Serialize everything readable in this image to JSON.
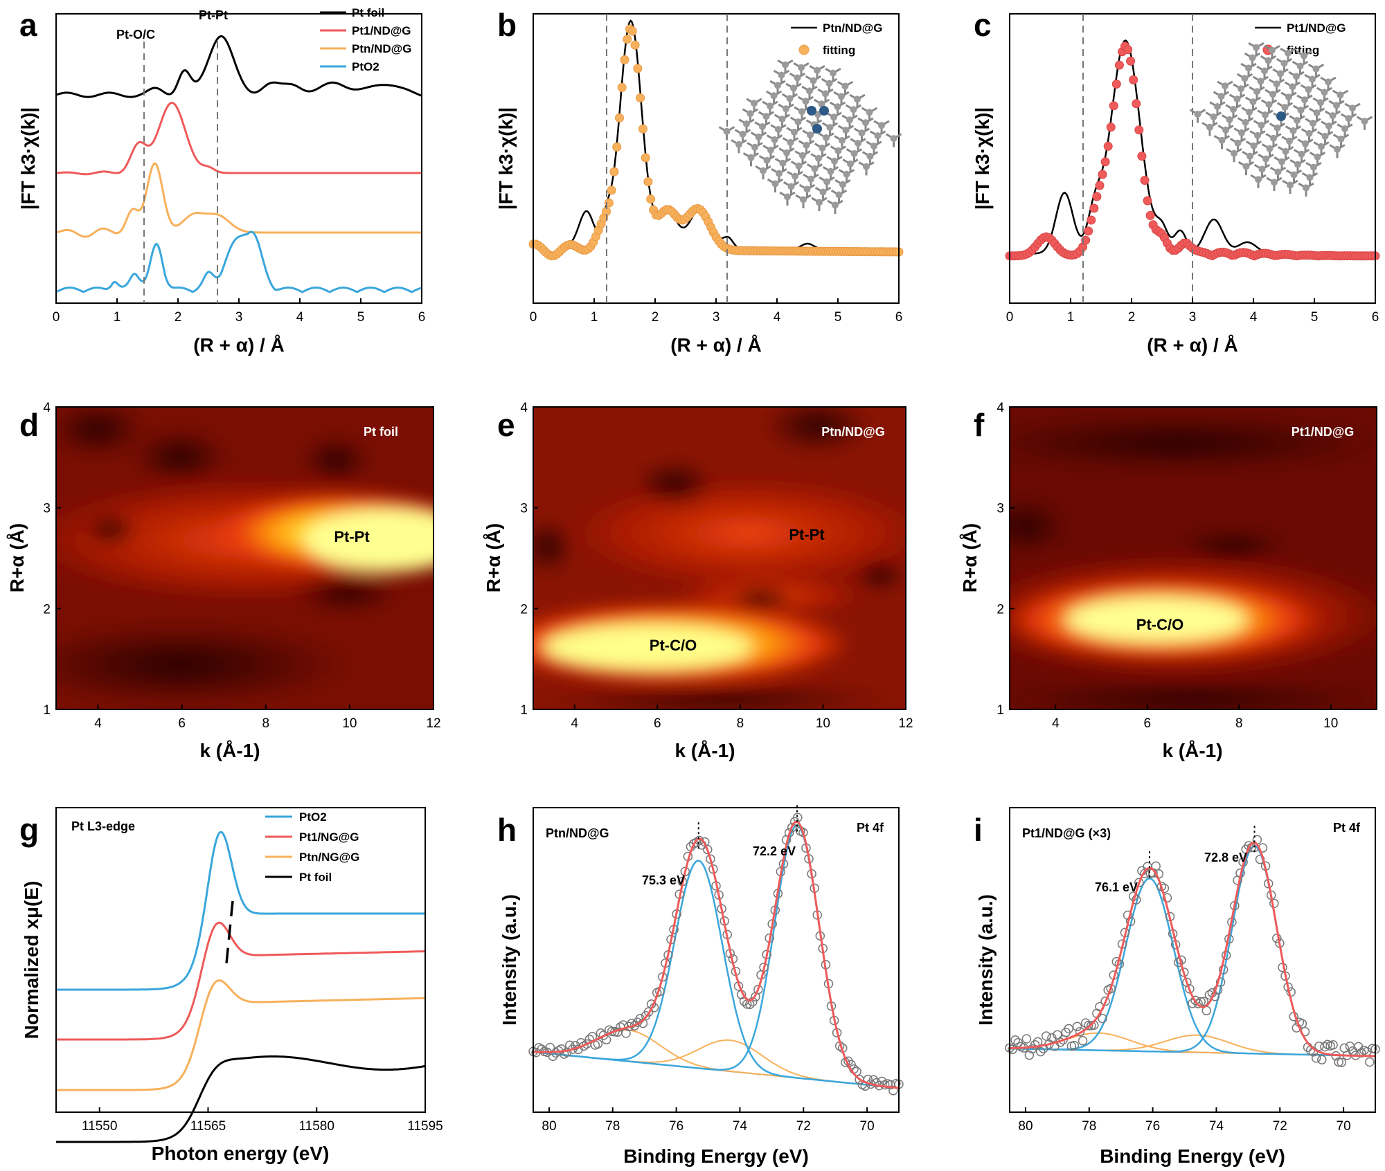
{
  "colors": {
    "black": "#000000",
    "red": "#ef5a5a",
    "orange": "#f7b05b",
    "blue": "#3aa6dc",
    "gray_marker": "#777777",
    "baseline": "#8a8a8a"
  },
  "chart_data": [
    {
      "panel": "a",
      "type": "line",
      "xlabel": "(R + α) / Å",
      "ylabel": "|FT k3·χ(k)|",
      "xlim": [
        0,
        6
      ],
      "xticks": [
        "0",
        "1",
        "2",
        "3",
        "4",
        "5",
        "6"
      ],
      "dashed_lines": [
        1.63,
        2.65
      ],
      "annotations": [
        {
          "text": "Pt-O/C",
          "x": 1.63
        },
        {
          "text": "Pt-Pt",
          "x": 2.65
        }
      ],
      "series": [
        {
          "name": "Pt foil",
          "color": "black"
        },
        {
          "name": "Pt1/ND@G",
          "color": "red"
        },
        {
          "name": "Ptn/ND@G",
          "color": "orange"
        },
        {
          "name": "PtO2",
          "color": "blue"
        }
      ]
    },
    {
      "panel": "b",
      "type": "line",
      "xlabel": "(R + α) / Å",
      "ylabel": "|FT k3·χ(k)|",
      "xlim": [
        0,
        6
      ],
      "xticks": [
        "0",
        "1",
        "2",
        "3",
        "4",
        "5",
        "6"
      ],
      "dashed_lines": [
        1.22,
        3.18
      ],
      "series": [
        {
          "name": "Ptn/ND@G",
          "color": "black"
        },
        {
          "name": "fitting",
          "color": "orange"
        }
      ]
    },
    {
      "panel": "c",
      "type": "line",
      "xlabel": "(R + α) / Å",
      "ylabel": "|FT k3·χ(k)|",
      "xlim": [
        0,
        6
      ],
      "xticks": [
        "0",
        "1",
        "2",
        "3",
        "4",
        "5",
        "6"
      ],
      "dashed_lines": [
        1.22,
        3.0
      ],
      "series": [
        {
          "name": "Pt1/ND@G",
          "color": "black"
        },
        {
          "name": "fitting",
          "color": "red"
        }
      ]
    },
    {
      "panel": "d",
      "type": "heatmap",
      "xlabel": "k (Å-1)",
      "ylabel": "R+α (Å)",
      "xlim": [
        3,
        12
      ],
      "ylim": [
        1,
        4
      ],
      "xticks": [
        "4",
        "6",
        "8",
        "10",
        "12"
      ],
      "yticks": [
        "1",
        "2",
        "3",
        "4"
      ],
      "tag": "Pt foil",
      "hotspot_label": "Pt-Pt"
    },
    {
      "panel": "e",
      "type": "heatmap",
      "xlabel": "k (Å-1)",
      "ylabel": "R+α (Å)",
      "xlim": [
        3,
        12
      ],
      "ylim": [
        1,
        4
      ],
      "xticks": [
        "4",
        "6",
        "8",
        "10",
        "12"
      ],
      "yticks": [
        "1",
        "2",
        "3",
        "4"
      ],
      "tag": "Ptn/ND@G",
      "hotspot_labels": [
        "Pt-Pt",
        "Pt-C/O"
      ]
    },
    {
      "panel": "f",
      "type": "heatmap",
      "xlabel": "k (Å-1)",
      "ylabel": "R+α (Å)",
      "xlim": [
        3,
        11
      ],
      "ylim": [
        1,
        4
      ],
      "xticks": [
        "4",
        "6",
        "8",
        "10"
      ],
      "yticks": [
        "1",
        "2",
        "3",
        "4"
      ],
      "tag": "Pt1/ND@G",
      "hotspot_label": "Pt-C/O"
    },
    {
      "panel": "g",
      "type": "line",
      "title": "Pt L3-edge",
      "xlabel": "Photon energy (eV)",
      "ylabel": "Normalized xμ(E)",
      "xlim": [
        11544,
        11595
      ],
      "xticks": [
        "11550",
        "11565",
        "11580",
        "11595"
      ],
      "series": [
        {
          "name": "PtO2",
          "color": "blue"
        },
        {
          "name": "Pt1/NG@G",
          "color": "red"
        },
        {
          "name": "Ptn/NG@G",
          "color": "orange"
        },
        {
          "name": "Pt foil",
          "color": "black"
        }
      ]
    },
    {
      "panel": "h",
      "type": "scatter",
      "sample": "Ptn/ND@G",
      "region": "Pt 4f",
      "xlabel": "Binding Energy (eV)",
      "ylabel": "Intensity (a.u.)",
      "xlim": [
        80.5,
        69
      ],
      "xticks": [
        "80",
        "78",
        "76",
        "74",
        "72",
        "70"
      ],
      "peaks": [
        {
          "label": "75.3 eV",
          "x": 75.3
        },
        {
          "label": "72.2 eV",
          "x": 72.2
        }
      ]
    },
    {
      "panel": "i",
      "type": "scatter",
      "sample": "Pt1/ND@G (×3)",
      "region": "Pt 4f",
      "xlabel": "Binding Energy (eV)",
      "ylabel": "Intensity (a.u.)",
      "xlim": [
        80.5,
        69
      ],
      "xticks": [
        "80",
        "78",
        "76",
        "74",
        "72",
        "70"
      ],
      "peaks": [
        {
          "label": "76.1 eV",
          "x": 76.1
        },
        {
          "label": "72.8 eV",
          "x": 72.8
        }
      ]
    }
  ],
  "labels": {
    "a": "a",
    "b": "b",
    "c": "c",
    "d": "d",
    "e": "e",
    "f": "f",
    "g": "g",
    "h": "h",
    "i": "i",
    "a_xlabel": "(R + α) / Å",
    "b_xlabel": "(R + α) / Å",
    "c_xlabel": "(R + α) / Å",
    "ft_ylabel": "|FT k3·χ(k)|",
    "a_leg": [
      "Pt foil",
      "Pt1/ND@G",
      "Ptn/ND@G",
      "PtO2"
    ],
    "a_ptoc": "Pt-O/C",
    "a_ptpt": "Pt-Pt",
    "b_leg": [
      "Ptn/ND@G",
      "fitting"
    ],
    "c_leg": [
      "Pt1/ND@G",
      "fitting"
    ],
    "heat_xlabel": "k (Å-1)",
    "heat_ylabel": "R+α (Å)",
    "d_tag": "Pt foil",
    "d_hot": "Pt-Pt",
    "e_tag": "Ptn/ND@G",
    "e_hot1": "Pt-Pt",
    "e_hot2": "Pt-C/O",
    "f_tag": "Pt1/ND@G",
    "f_hot": "Pt-C/O",
    "g_title": "Pt L3-edge",
    "g_xlabel": "Photon energy (eV)",
    "g_ylabel": "Normalized xμ(E)",
    "g_leg": [
      "PtO2",
      "Pt1/NG@G",
      "Ptn/NG@G",
      "Pt foil"
    ],
    "h_sample": "Ptn/ND@G",
    "h_region": "Pt 4f",
    "h_p1": "75.3 eV",
    "h_p2": "72.2 eV",
    "i_sample": "Pt1/ND@G (×3)",
    "i_region": "Pt 4f",
    "i_p1": "76.1 eV",
    "i_p2": "72.8 eV",
    "xps_xlabel": "Binding Energy (eV)",
    "xps_ylabel": "Intensity (a.u.)"
  }
}
